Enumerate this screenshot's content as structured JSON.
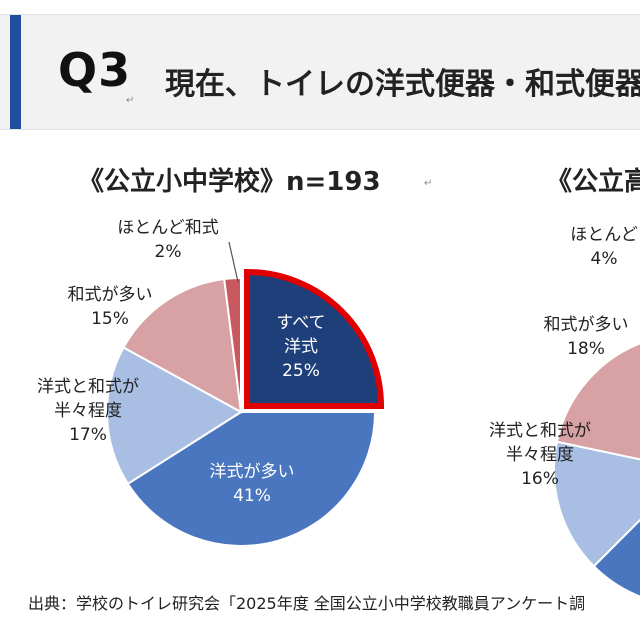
{
  "header": {
    "question_number": "Q3",
    "return_mark": "↵",
    "question_text": "現在、トイレの洋式便器・和式便器"
  },
  "chart_data": [
    {
      "type": "pie",
      "title": "《公立小中学校》n=193",
      "slices": [
        {
          "label_lines": [
            "すべて",
            "洋式"
          ],
          "value": 25,
          "value_label": "25%",
          "color": "#1f3f7a"
        },
        {
          "label_lines": [
            "洋式が多い"
          ],
          "value": 41,
          "value_label": "41%",
          "color": "#4a76c0"
        },
        {
          "label_lines": [
            "洋式と和式が",
            "半々程度"
          ],
          "value": 17,
          "value_label": "17%",
          "color": "#a8bfe3"
        },
        {
          "label_lines": [
            "和式が多い"
          ],
          "value": 15,
          "value_label": "15%",
          "color": "#d8a1a4"
        },
        {
          "label_lines": [
            "ほとんど和式"
          ],
          "value": 2,
          "value_label": "2%",
          "color": "#c85a5f"
        }
      ],
      "highlight": "すべて洋式"
    },
    {
      "type": "pie",
      "title": "《公立高",
      "partial": true,
      "slices": [
        {
          "label_lines": [
            "洋式と和式が",
            "半々程度"
          ],
          "value": 16,
          "value_label": "16%",
          "color": "#a8bfe3"
        },
        {
          "label_lines": [
            "和式が多い"
          ],
          "value": 18,
          "value_label": "18%",
          "color": "#d8a1a4"
        },
        {
          "label_lines": [
            "ほとんど"
          ],
          "value": 4,
          "value_label": "4%",
          "color": "#c85a5f"
        }
      ]
    }
  ],
  "title_mark": "↵",
  "source": "出典：学校のトイレ研究会「2025年度 全国公立小中学校教職員アンケート調"
}
